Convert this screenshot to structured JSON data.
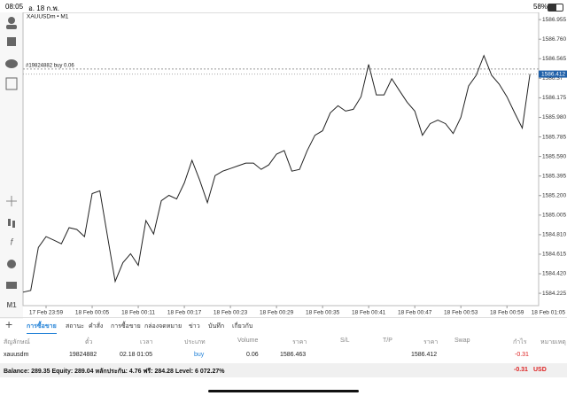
{
  "status_bar": {
    "time": "08:05",
    "date": "อ. 18 ก.พ.",
    "battery": "58%"
  },
  "chart_data": {
    "type": "line",
    "title": "XAUUSDm • M1",
    "categories": [
      null,
      null,
      null,
      "17 Feb 23:59",
      null,
      null,
      null,
      null,
      null,
      "18 Feb 00:05",
      null,
      null,
      null,
      null,
      null,
      "18 Feb 00:11",
      null,
      null,
      null,
      null,
      null,
      "18 Feb 00:17",
      null,
      null,
      null,
      null,
      null,
      "18 Feb 00:23",
      null,
      null,
      null,
      null,
      null,
      "18 Feb 00:29",
      null,
      null,
      null,
      null,
      null,
      "18 Feb 00:35",
      null,
      null,
      null,
      null,
      null,
      "18 Feb 00:41",
      null,
      null,
      null,
      null,
      null,
      "18 Feb 00:47",
      null,
      null,
      null,
      null,
      null,
      "18 Feb 00:53",
      null,
      null,
      null,
      null,
      null,
      "18 Feb 00:59",
      null,
      null,
      null,
      null,
      null,
      "18 Feb 01:05"
    ],
    "series": [
      {
        "name": "XAUUSDm",
        "color": "#222222",
        "values": [
          1584.236,
          1584.254,
          1584.683,
          1584.79,
          1584.755,
          1584.719,
          1584.88,
          1584.862,
          1584.79,
          1585.22,
          1585.247,
          1584.79,
          1584.343,
          1584.531,
          1584.62,
          1584.504,
          1584.951,
          1584.817,
          1585.148,
          1585.202,
          1585.166,
          1585.327,
          1585.551,
          1585.354,
          1585.13,
          1585.399,
          1585.443,
          1585.47,
          1585.497,
          1585.524,
          1585.524,
          1585.461,
          1585.506,
          1585.613,
          1585.649,
          1585.443,
          1585.461,
          1585.649,
          1585.801,
          1585.846,
          1586.025,
          1586.096,
          1586.043,
          1586.06,
          1586.186,
          1586.508,
          1586.204,
          1586.204,
          1586.365,
          1586.248,
          1586.132,
          1586.043,
          1585.801,
          1585.917,
          1585.953,
          1585.917,
          1585.819,
          1585.98,
          1586.293,
          1586.4,
          1586.597,
          1586.4,
          1586.311,
          1586.186,
          1586.025,
          1585.873,
          1586.412,
          null,
          null,
          null
        ]
      }
    ],
    "ylim": [
      1584.102,
      1587.027
    ],
    "yticks": [
      1586.955,
      {
        "value": 1586.76,
        "label": "1586.760"
      },
      1586.565,
      1586.37,
      1586.175,
      {
        "value": 1585.98,
        "label": "1585.980"
      },
      1585.785,
      {
        "value": 1585.59,
        "label": "1585.590"
      },
      1585.395,
      {
        "value": 1585.2,
        "label": "1585.200"
      },
      1585.005,
      {
        "value": 1584.81,
        "label": "1584.810"
      },
      1584.615,
      {
        "value": 1584.42,
        "label": "1584.420"
      },
      1584.225
    ],
    "grid": false,
    "order_line": {
      "label": "#19824882 buy 0.06",
      "value": 1586.463
    },
    "current_price": 1586.412
  },
  "tabs": [
    "การซื้อขาย",
    "สถานะ",
    "คำสั่ง",
    "การซื้อขาย",
    "กล่องจดหมาย",
    "ข่าว",
    "บันทึก",
    "เกี่ยวกับ"
  ],
  "table": {
    "headers": [
      "สัญลักษณ์",
      "ตั๋ว",
      "เวลา",
      "ประเภท",
      "Volume",
      "ราคา",
      "S/L",
      "T/P",
      "ราคา",
      "Swap",
      "กำไร",
      "หมายเหตุ"
    ],
    "row": {
      "symbol": "xauusdm",
      "ticket": "19824882",
      "time": "02.18 01:05",
      "type": "buy",
      "volume": "0.06",
      "price": "1586.463",
      "current_price": "1586.412",
      "profit": "-0.31"
    }
  },
  "footer": {
    "summary": "Balance: 289.35 Equity: 289.04 หลักประกัน: 4.76 ฟรี: 284.28 Level: 6 072.27%",
    "profit": "-0.31",
    "currency": "USD"
  }
}
